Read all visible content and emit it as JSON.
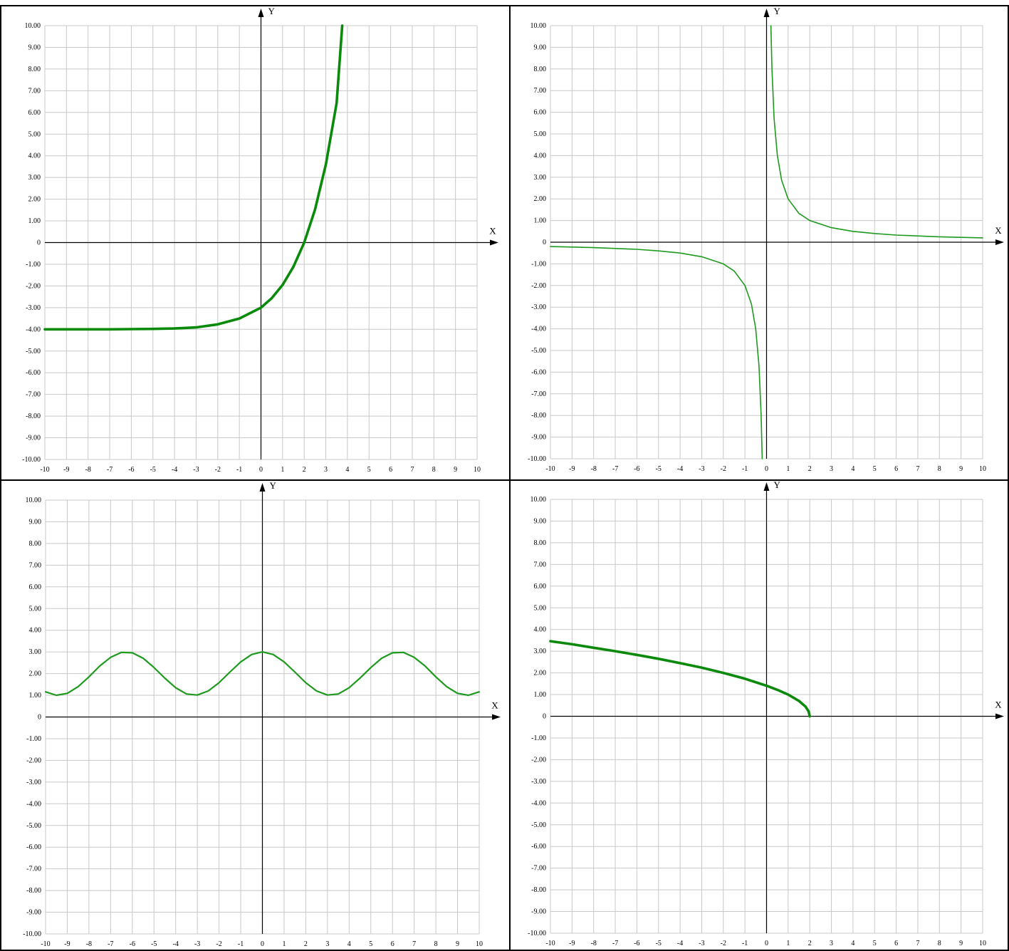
{
  "axis_names": {
    "x": "X",
    "y": "Y"
  },
  "chart_data": [
    {
      "type": "line",
      "title": "",
      "xlabel": "X",
      "ylabel": "Y",
      "xlim": [
        -10,
        10
      ],
      "ylim": [
        -10,
        10
      ],
      "grid": true,
      "x_ticks": [
        "-10",
        "-9",
        "-8",
        "-7",
        "-6",
        "-5",
        "-4",
        "-3",
        "-2",
        "-1",
        "0",
        "1",
        "2",
        "3",
        "4",
        "5",
        "6",
        "7",
        "8",
        "9",
        "10"
      ],
      "y_ticks": [
        "10.00",
        "9.00",
        "8.00",
        "7.00",
        "6.00",
        "5.00",
        "4.00",
        "3.00",
        "2.00",
        "1.00",
        "0",
        "-1.00",
        "-2.00",
        "-3.00",
        "-4.00",
        "-5.00",
        "-6.00",
        "-7.00",
        "-8.00",
        "-9.00",
        "-10.00"
      ],
      "color": "#0a8a0a",
      "line_width": "thick",
      "series": [
        {
          "x": [
            -10,
            -9,
            -8,
            -7,
            -6,
            -5,
            -4,
            -3,
            -2,
            -1,
            0,
            0.5,
            1,
            1.5,
            2,
            2.5,
            3,
            3.5,
            3.76
          ],
          "y": [
            -4.0,
            -4.0,
            -4.0,
            -4.0,
            -3.99,
            -3.98,
            -3.96,
            -3.91,
            -3.77,
            -3.5,
            -3.0,
            -2.56,
            -1.95,
            -1.12,
            0.0,
            1.52,
            3.6,
            6.42,
            10.0
          ]
        }
      ]
    },
    {
      "type": "line",
      "title": "",
      "xlabel": "X",
      "ylabel": "Y",
      "xlim": [
        -10,
        10
      ],
      "ylim": [
        -10,
        10
      ],
      "grid": true,
      "x_ticks": [
        "-10",
        "-9",
        "-8",
        "-7",
        "-6",
        "-5",
        "-4",
        "-3",
        "-2",
        "-1",
        "0",
        "1",
        "2",
        "3",
        "4",
        "5",
        "6",
        "7",
        "8",
        "9",
        "10"
      ],
      "y_ticks": [
        "10.00",
        "9.00",
        "8.00",
        "7.00",
        "6.00",
        "5.00",
        "4.00",
        "3.00",
        "2.00",
        "1.00",
        "0",
        "-1.00",
        "-2.00",
        "-3.00",
        "-4.00",
        "-5.00",
        "-6.00",
        "-7.00",
        "-8.00",
        "-9.00",
        "-10.00"
      ],
      "color": "#1e9a1e",
      "line_width": "thin",
      "series": [
        {
          "x": [
            -10,
            -8,
            -6,
            -5,
            -4,
            -3,
            -2,
            -1.5,
            -1,
            -0.7,
            -0.5,
            -0.35,
            -0.25,
            -0.2
          ],
          "y": [
            -0.2,
            -0.25,
            -0.33,
            -0.4,
            -0.5,
            -0.67,
            -1.0,
            -1.33,
            -2.0,
            -2.86,
            -4.0,
            -5.71,
            -8.0,
            -10.0
          ]
        },
        {
          "x": [
            0.2,
            0.25,
            0.35,
            0.5,
            0.7,
            1,
            1.5,
            2,
            3,
            4,
            5,
            6,
            8,
            10
          ],
          "y": [
            10.0,
            8.0,
            5.71,
            4.0,
            2.86,
            2.0,
            1.33,
            1.0,
            0.67,
            0.5,
            0.4,
            0.33,
            0.25,
            0.2
          ]
        }
      ]
    },
    {
      "type": "line",
      "title": "",
      "xlabel": "X",
      "ylabel": "Y",
      "xlim": [
        -10,
        10
      ],
      "ylim": [
        -10,
        10
      ],
      "grid": true,
      "x_ticks": [
        "-10",
        "-9",
        "-8",
        "-7",
        "-6",
        "-5",
        "-4",
        "-3",
        "-2",
        "-1",
        "0",
        "1",
        "2",
        "3",
        "4",
        "5",
        "6",
        "7",
        "8",
        "9",
        "10"
      ],
      "y_ticks": [
        "10.00",
        "9.00",
        "8.00",
        "7.00",
        "6.00",
        "5.00",
        "4.00",
        "3.00",
        "2.00",
        "1.00",
        "0",
        "-1.00",
        "-2.00",
        "-3.00",
        "-4.00",
        "-5.00",
        "-6.00",
        "-7.00",
        "-8.00",
        "-9.00",
        "-10.00"
      ],
      "color": "#1e9a1e",
      "line_width": "medium",
      "series": [
        {
          "x": [
            -10,
            -9.5,
            -9,
            -8.5,
            -8,
            -7.5,
            -7,
            -6.5,
            -6,
            -5.5,
            -5,
            -4.5,
            -4,
            -3.5,
            -3,
            -2.5,
            -2,
            -1.5,
            -1,
            -0.5,
            0,
            0.5,
            1,
            1.5,
            2,
            2.5,
            3,
            3.5,
            4,
            4.5,
            5,
            5.5,
            6,
            6.5,
            7,
            7.5,
            8,
            8.5,
            9,
            9.5,
            10
          ],
          "y": [
            1.16,
            1.0,
            1.09,
            1.4,
            1.85,
            2.35,
            2.75,
            2.98,
            2.96,
            2.71,
            2.28,
            1.79,
            1.35,
            1.06,
            1.01,
            1.2,
            1.58,
            2.07,
            2.54,
            2.88,
            3.0,
            2.88,
            2.54,
            2.07,
            1.58,
            1.2,
            1.01,
            1.06,
            1.35,
            1.79,
            2.28,
            2.71,
            2.96,
            2.98,
            2.75,
            2.35,
            1.85,
            1.4,
            1.09,
            1.0,
            1.16
          ]
        }
      ]
    },
    {
      "type": "line",
      "title": "",
      "xlabel": "X",
      "ylabel": "Y",
      "xlim": [
        -10,
        10
      ],
      "ylim": [
        -10,
        10
      ],
      "grid": true,
      "x_ticks": [
        "-10",
        "-9",
        "-8",
        "-7",
        "-6",
        "-5",
        "-4",
        "-3",
        "-2",
        "-1",
        "0",
        "1",
        "2",
        "3",
        "4",
        "5",
        "6",
        "7",
        "8",
        "9",
        "10"
      ],
      "y_ticks": [
        "10.00",
        "9.00",
        "8.00",
        "7.00",
        "6.00",
        "5.00",
        "4.00",
        "3.00",
        "2.00",
        "1.00",
        "0",
        "-1.00",
        "-2.00",
        "-3.00",
        "-4.00",
        "-5.00",
        "-6.00",
        "-7.00",
        "-8.00",
        "-9.00",
        "-10.00"
      ],
      "color": "#0a8a0a",
      "line_width": "thick",
      "series": [
        {
          "x": [
            -10,
            -9,
            -8,
            -7,
            -6,
            -5,
            -4,
            -3,
            -2,
            -1,
            0,
            0.5,
            1,
            1.5,
            1.8,
            1.95,
            2
          ],
          "y": [
            3.46,
            3.32,
            3.16,
            3.0,
            2.83,
            2.65,
            2.45,
            2.24,
            2.0,
            1.73,
            1.41,
            1.22,
            1.0,
            0.71,
            0.45,
            0.22,
            0.0
          ]
        }
      ]
    }
  ]
}
